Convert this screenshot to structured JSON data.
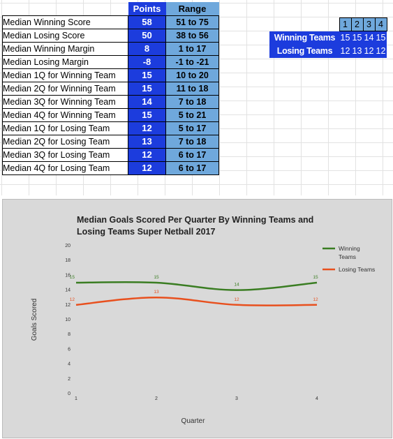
{
  "stats_table": {
    "header_points": "Points",
    "header_range": "Range",
    "rows": [
      {
        "label": "Median Winning Score",
        "points": "58",
        "range": "51 to 75"
      },
      {
        "label": "Median Losing Score",
        "points": "50",
        "range": "38 to 56"
      },
      {
        "label": "Median Winning Margin",
        "points": "8",
        "range": "1 to 17"
      },
      {
        "label": "Median Losing Margin",
        "points": "-8",
        "range": "-1 to -21"
      },
      {
        "label": "Median 1Q for Winning Team",
        "points": "15",
        "range": "10 to 20"
      },
      {
        "label": "Median 2Q for Winning Team",
        "points": "15",
        "range": "11 to 18"
      },
      {
        "label": "Median 3Q for Winning Team",
        "points": "14",
        "range": "7 to 18"
      },
      {
        "label": "Median 4Q for Winning Team",
        "points": "15",
        "range": "5 to 21"
      },
      {
        "label": "Median 1Q for Losing Team",
        "points": "12",
        "range": "5 to 17"
      },
      {
        "label": "Median 2Q for Losing Team",
        "points": "13",
        "range": "7 to 18"
      },
      {
        "label": "Median 3Q for Losing Team",
        "points": "12",
        "range": "6 to 17"
      },
      {
        "label": "Median 4Q for Losing Team",
        "points": "12",
        "range": "6 to 17"
      }
    ]
  },
  "quarter_table": {
    "headers": [
      "1",
      "2",
      "3",
      "4"
    ],
    "rows": [
      {
        "label": "Winning Teams",
        "values": [
          "15",
          "15",
          "14",
          "15"
        ]
      },
      {
        "label": "Losing Teams",
        "values": [
          "12",
          "13",
          "12",
          "12"
        ]
      }
    ]
  },
  "colors": {
    "points_bg": "#1c3cdd",
    "range_bg": "#6fa8dc",
    "winning_line": "#3a7d22",
    "losing_line": "#e8501e",
    "chart_bg": "#d9d9d9"
  },
  "chart_data": {
    "type": "line",
    "title_lines": [
      "Median Goals Scored Per Quarter By Winning Teams and",
      "Losing Teams Super Netball 2017"
    ],
    "xlabel": "Quarter",
    "ylabel": "Goals Scored",
    "x": [
      1,
      2,
      3,
      4
    ],
    "x_ticks": [
      "1",
      "2",
      "3",
      "4"
    ],
    "y_ticks": [
      "0",
      "2",
      "4",
      "6",
      "8",
      "10",
      "12",
      "14",
      "16",
      "18",
      "20"
    ],
    "ylim": [
      0,
      20
    ],
    "grid": false,
    "legend_position": "top-right",
    "series": [
      {
        "name_lines": [
          "Winning",
          "Teams"
        ],
        "values": [
          15,
          15,
          14,
          15
        ],
        "labels": [
          "15",
          "15",
          "14",
          "15"
        ]
      },
      {
        "name_lines": [
          "Losing Teams"
        ],
        "values": [
          12,
          13,
          12,
          12
        ],
        "labels": [
          "12",
          "13",
          "12",
          "12"
        ]
      }
    ]
  }
}
